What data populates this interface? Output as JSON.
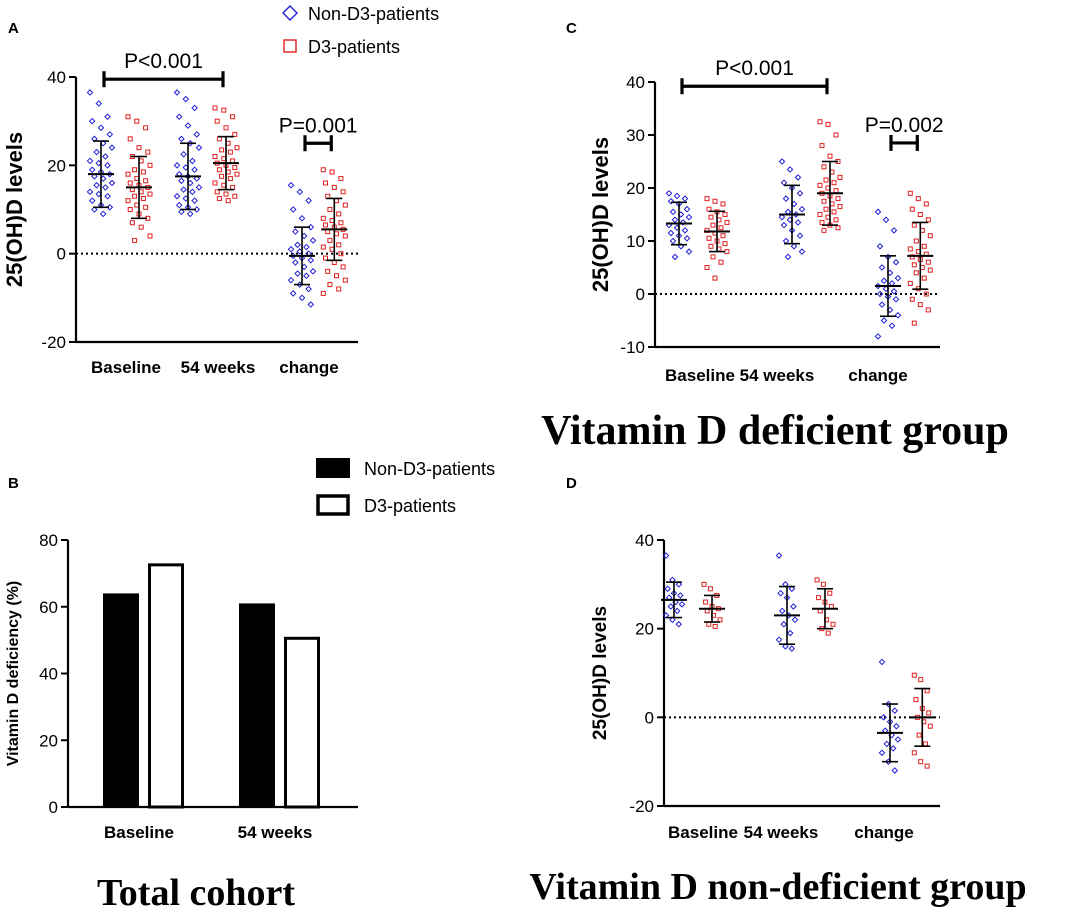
{
  "figure": {
    "panel_labels": {
      "a": "A",
      "b": "B",
      "c": "C",
      "d": "D"
    },
    "group_titles": {
      "total": "Total cohort",
      "deficient": "Vitamin D deficient group",
      "non_deficient": "Vitamin D non-deficient group"
    },
    "scatter_legend": {
      "non_d3": "Non-D3-patients",
      "d3": "D3-patients"
    },
    "bar_legend": {
      "non_d3": "Non-D3-patients",
      "d3": "D3-patients"
    },
    "colors": {
      "non_d3": "#1f1fd6",
      "d3": "#e02020",
      "error_bar": "#000000"
    }
  },
  "chart_data": [
    {
      "id": "A",
      "type": "scatter",
      "title": "",
      "ylabel": "25(OH)D levels",
      "xlabel": "",
      "ylim": [
        -20,
        40
      ],
      "yticks": [
        -20,
        0,
        20,
        40
      ],
      "categories": [
        "Baseline",
        "54 weeks",
        "change"
      ],
      "series": [
        {
          "name": "Non-D3-patients",
          "marker": "diamond",
          "groups": [
            {
              "category": "Baseline",
              "mean": 18,
              "sd": 7.5,
              "values": [
                36.5,
                34,
                31,
                30,
                28.5,
                27,
                26,
                25,
                24,
                23,
                22,
                21,
                20.5,
                20,
                19,
                18.5,
                18,
                17.5,
                17,
                16,
                15.5,
                15,
                14,
                13.5,
                13,
                12,
                11,
                10.5,
                10,
                9
              ]
            },
            {
              "category": "54 weeks",
              "mean": 17.5,
              "sd": 7.5,
              "values": [
                36.5,
                35,
                33,
                31,
                29,
                27,
                26,
                25,
                24,
                22.5,
                21,
                20,
                19.5,
                19,
                18,
                17.5,
                17,
                16.5,
                16,
                15,
                14.5,
                14,
                13,
                12.5,
                12,
                11,
                10.5,
                10,
                9.5,
                9
              ]
            },
            {
              "category": "change",
              "mean": -0.5,
              "sd": 6.5,
              "values": [
                15.5,
                14,
                12,
                10,
                8,
                6,
                5,
                4,
                3,
                2,
                1.5,
                1,
                0.5,
                0,
                -0.5,
                -1,
                -1.5,
                -2,
                -3,
                -4,
                -4.5,
                -5,
                -6,
                -7,
                -8,
                -9,
                -10,
                -11.5
              ]
            }
          ]
        },
        {
          "name": "D3-patients",
          "marker": "square",
          "groups": [
            {
              "category": "Baseline",
              "mean": 15,
              "sd": 7,
              "values": [
                31,
                30,
                28.5,
                26,
                24,
                23,
                22,
                21,
                20,
                19,
                18.5,
                18,
                17,
                16.5,
                16,
                15.5,
                15,
                14.5,
                14,
                13.5,
                13,
                12.5,
                12,
                11,
                10.5,
                10,
                9,
                8,
                7,
                6,
                4,
                3
              ]
            },
            {
              "category": "54 weeks",
              "mean": 20.5,
              "sd": 6,
              "values": [
                33,
                32.5,
                31,
                30,
                28.5,
                27,
                26,
                25,
                24,
                23.5,
                23,
                22,
                21.5,
                21,
                20.5,
                20,
                19.5,
                19,
                18.5,
                18,
                17.5,
                17,
                16,
                15.5,
                15,
                14,
                13.5,
                13,
                12.5,
                12
              ]
            },
            {
              "category": "change",
              "mean": 5.5,
              "sd": 7,
              "values": [
                19,
                18.5,
                17,
                16,
                15,
                14,
                13,
                12,
                11,
                10,
                9,
                8,
                7.5,
                7,
                6.5,
                6,
                5.5,
                5,
                4.5,
                4,
                3,
                2,
                1.5,
                1,
                0,
                -1,
                -2,
                -3,
                -4,
                -5,
                -6,
                -7,
                -8,
                -9
              ]
            }
          ]
        }
      ],
      "annotations": [
        {
          "text": "P<0.001",
          "from": "Baseline",
          "to": "54 weeks",
          "y": 39.5
        },
        {
          "text": "P=0.001",
          "from": "change:Non-D3-patients",
          "to": "change:D3-patients",
          "y": 25
        }
      ]
    },
    {
      "id": "B",
      "type": "bar",
      "title": "",
      "ylabel": "Vitamin D deficiency (%)",
      "xlabel": "",
      "ylim": [
        0,
        80
      ],
      "yticks": [
        0,
        20,
        40,
        60,
        80
      ],
      "categories": [
        "Baseline",
        "54 weeks"
      ],
      "series": [
        {
          "name": "Non-D3-patients",
          "fill": "solid",
          "values": [
            64,
            61
          ]
        },
        {
          "name": "D3-patients",
          "fill": "hollow",
          "values": [
            73,
            51
          ]
        }
      ]
    },
    {
      "id": "C",
      "type": "scatter",
      "title": "",
      "ylabel": "25(OH)D levels",
      "xlabel": "",
      "ylim": [
        -10,
        40
      ],
      "yticks": [
        -10,
        0,
        10,
        20,
        30,
        40
      ],
      "categories": [
        "Baseline",
        "54 weeks",
        "change"
      ],
      "series": [
        {
          "name": "Non-D3-patients",
          "marker": "diamond",
          "groups": [
            {
              "category": "Baseline",
              "mean": 13.3,
              "sd": 4,
              "values": [
                19,
                18.5,
                18,
                17.5,
                17,
                16,
                15.5,
                15,
                14.5,
                14,
                13.5,
                13,
                12.5,
                12,
                11.5,
                11,
                10.5,
                10,
                9,
                8,
                7
              ]
            },
            {
              "category": "54 weeks",
              "mean": 15,
              "sd": 5.5,
              "values": [
                25,
                23.5,
                22,
                21,
                20,
                19,
                18,
                17,
                16,
                15.5,
                15,
                14.5,
                14,
                13.5,
                13,
                12,
                11,
                10,
                9,
                8,
                7
              ]
            },
            {
              "category": "change",
              "mean": 1.5,
              "sd": 5.7,
              "values": [
                15.5,
                14,
                12,
                9,
                7,
                6,
                5,
                4,
                3,
                2.5,
                2,
                1.5,
                1,
                0.5,
                0,
                -0.5,
                -1,
                -2,
                -3,
                -4,
                -5,
                -6,
                -8
              ]
            }
          ]
        },
        {
          "name": "D3-patients",
          "marker": "square",
          "groups": [
            {
              "category": "Baseline",
              "mean": 11.8,
              "sd": 3.8,
              "values": [
                18,
                17.5,
                17,
                16,
                15.5,
                15,
                14.5,
                14,
                13.5,
                13,
                12.5,
                12,
                11.5,
                11,
                10.5,
                10,
                9.5,
                9,
                8.5,
                8,
                7,
                6,
                5,
                3
              ]
            },
            {
              "category": "54 weeks",
              "mean": 19,
              "sd": 6,
              "values": [
                32.5,
                32,
                30,
                28,
                26,
                25,
                24,
                23,
                22,
                21.5,
                21,
                20.5,
                20,
                19.5,
                19,
                18.5,
                18,
                17.5,
                17,
                16.5,
                16,
                15.5,
                15,
                14.5,
                14,
                13.5,
                13,
                12.5,
                12
              ]
            },
            {
              "category": "change",
              "mean": 7.2,
              "sd": 6.3,
              "values": [
                19,
                18,
                17,
                16,
                15,
                14,
                13,
                12,
                11,
                10,
                9,
                8.5,
                8,
                7.5,
                7,
                6.5,
                6,
                5.5,
                5,
                4.5,
                4,
                3,
                2,
                1,
                0,
                -1,
                -2,
                -3,
                -5.5
              ]
            }
          ]
        }
      ],
      "annotations": [
        {
          "text": "P<0.001",
          "from": "Baseline",
          "to": "54 weeks",
          "y": 39.2
        },
        {
          "text": "P=0.002",
          "from": "change:Non-D3-patients",
          "to": "change:D3-patients",
          "y": 28.5
        }
      ]
    },
    {
      "id": "D",
      "type": "scatter",
      "title": "",
      "ylabel": "25(OH)D levels",
      "xlabel": "",
      "ylim": [
        -20,
        40
      ],
      "yticks": [
        -20,
        0,
        20,
        40
      ],
      "categories": [
        "Baseline",
        "54 weeks",
        "change"
      ],
      "series": [
        {
          "name": "Non-D3-patients",
          "marker": "diamond",
          "groups": [
            {
              "category": "Baseline",
              "mean": 26.5,
              "sd": 4,
              "values": [
                36.5,
                31,
                30,
                29,
                28,
                27.5,
                27,
                26,
                25.5,
                25,
                24,
                23,
                22,
                21
              ]
            },
            {
              "category": "54 weeks",
              "mean": 23,
              "sd": 6.5,
              "values": [
                36.5,
                30,
                29,
                28,
                27,
                25,
                24,
                23,
                22,
                21,
                19,
                17.5,
                16,
                15.5
              ]
            },
            {
              "category": "change",
              "mean": -3.5,
              "sd": 6.5,
              "values": [
                12.5,
                3,
                1.5,
                0,
                -1,
                -2,
                -3,
                -4,
                -5,
                -6,
                -7,
                -8,
                -10,
                -12
              ]
            }
          ]
        },
        {
          "name": "D3-patients",
          "marker": "square",
          "groups": [
            {
              "category": "Baseline",
              "mean": 24.5,
              "sd": 3,
              "values": [
                30,
                29,
                27.5,
                26,
                25,
                24.5,
                24,
                23,
                22,
                21,
                20.5
              ]
            },
            {
              "category": "54 weeks",
              "mean": 24.5,
              "sd": 4.5,
              "values": [
                31,
                30,
                28,
                27,
                26,
                25,
                24,
                22,
                21,
                20,
                19
              ]
            },
            {
              "category": "change",
              "mean": 0,
              "sd": 6.5,
              "values": [
                9.5,
                8.5,
                6,
                4,
                2,
                1,
                0,
                -1,
                -2,
                -4,
                -6,
                -8,
                -10,
                -11
              ]
            }
          ]
        }
      ],
      "annotations": []
    }
  ]
}
